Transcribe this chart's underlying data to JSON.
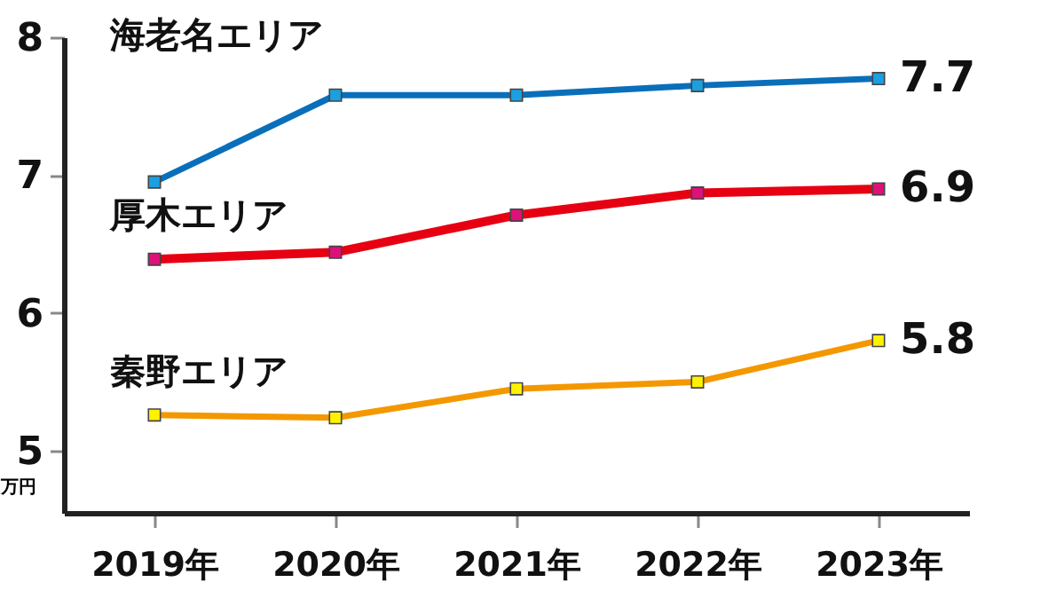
{
  "chart_data": {
    "type": "line",
    "ylabel": "万円",
    "categories": [
      "2019年",
      "2020年",
      "2021年",
      "2022年",
      "2023年"
    ],
    "series": [
      {
        "name": "海老名エリア",
        "color": "#0a6fba",
        "values": [
          6.95,
          7.58,
          7.58,
          7.65,
          7.7
        ],
        "value_labels": [
          null,
          null,
          null,
          null,
          "7.7"
        ]
      },
      {
        "name": "厚木エリア",
        "color": "#e60012",
        "values": [
          6.39,
          6.44,
          6.71,
          6.87,
          6.9
        ],
        "value_labels": [
          null,
          null,
          null,
          null,
          "6.9"
        ]
      },
      {
        "name": "秦野エリア",
        "color": "#f39800",
        "values": [
          5.26,
          5.24,
          5.45,
          5.5,
          5.8
        ],
        "value_labels": [
          null,
          null,
          null,
          null,
          "5.8"
        ]
      }
    ],
    "ylim": [
      4.55,
      8
    ],
    "yticks": [
      5,
      6,
      7,
      8
    ],
    "grid": false,
    "marker": "square",
    "line_style": "solid"
  }
}
